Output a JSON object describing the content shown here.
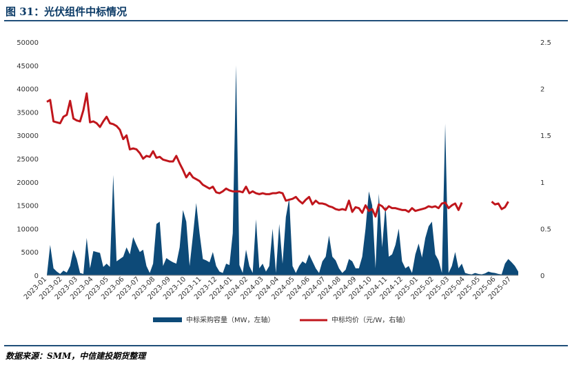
{
  "header": {
    "title": "图 31：光伏组件中标情况"
  },
  "footer": {
    "source": "数据来源：SMM，中信建投期货整理"
  },
  "chart_data": {
    "type": "area+line",
    "y_left": {
      "ticks": [
        "50000",
        "45000",
        "40000",
        "35000",
        "30000",
        "25000",
        "20000",
        "15000",
        "10000",
        "5000",
        "0"
      ],
      "lim": [
        0,
        50000
      ]
    },
    "y_right": {
      "ticks": [
        "2.5",
        "2",
        "1.5",
        "1",
        "0.5",
        "0"
      ],
      "lim": [
        0,
        2.5
      ]
    },
    "x_ticks": [
      "2023-01",
      "2023-02",
      "2023-03",
      "2023-04",
      "2023-05",
      "2023-06",
      "2023-07",
      "2023-08",
      "2023-09",
      "2023-10",
      "2023-11",
      "2023-12",
      "2024-01",
      "2024-02",
      "2024-03",
      "2024-04",
      "2024-05",
      "2024-06",
      "2024-07",
      "2024-08",
      "2024-09",
      "2024-10",
      "2024-11",
      "2024-12",
      "2025-01",
      "2025-02",
      "2025-03",
      "2025-04",
      "2025-05",
      "2025-06",
      "2025-07"
    ],
    "series": [
      {
        "name": "中标采购容量（MW，左轴）",
        "axis": "left",
        "type": "area",
        "color": "#0d4a78",
        "values": [
          0,
          6500,
          1500,
          800,
          300,
          1000,
          600,
          2000,
          5500,
          3500,
          500,
          300,
          8000,
          1500,
          5200,
          5000,
          4800,
          1800,
          2500,
          1800,
          21500,
          3000,
          3500,
          4000,
          6000,
          4500,
          8200,
          6500,
          5000,
          5500,
          2000,
          500,
          2500,
          11000,
          11500,
          2000,
          3700,
          3200,
          2800,
          2500,
          6000,
          14000,
          11500,
          2000,
          8500,
          15500,
          9000,
          3500,
          3200,
          2800,
          5000,
          2000,
          800,
          500,
          2500,
          2200,
          9000,
          45000,
          2200,
          500,
          5500,
          2000,
          500,
          12000,
          1500,
          2500,
          800,
          2000,
          10000,
          500,
          11000,
          2500,
          12500,
          16500,
          2000,
          500,
          2000,
          3000,
          2500,
          4500,
          3000,
          1500,
          500,
          3000,
          4000,
          8500,
          4000,
          3200,
          1500,
          500,
          1200,
          3500,
          3000,
          1500,
          1500,
          4000,
          10000,
          18000,
          15000,
          1500,
          17500,
          6000,
          15000,
          4000,
          4500,
          6500,
          10000,
          3000,
          1500,
          2000,
          500,
          4500,
          6800,
          3800,
          8000,
          10500,
          11500,
          4500,
          3200,
          500,
          32500,
          500,
          2000,
          5000,
          1500,
          2500,
          500,
          300,
          200,
          500,
          300,
          200,
          400,
          800,
          600,
          500,
          300,
          200,
          2500,
          3500,
          2800,
          2000,
          800
        ]
      },
      {
        "name": "中标均价（元/W，右轴）",
        "axis": "right",
        "type": "line",
        "color": "#c0161c",
        "values": [
          1.86,
          1.88,
          1.65,
          1.64,
          1.63,
          1.7,
          1.72,
          1.87,
          1.68,
          1.66,
          1.65,
          1.77,
          1.95,
          1.64,
          1.65,
          1.63,
          1.59,
          1.65,
          1.7,
          1.63,
          1.62,
          1.6,
          1.56,
          1.46,
          1.5,
          1.35,
          1.36,
          1.35,
          1.31,
          1.25,
          1.28,
          1.27,
          1.33,
          1.26,
          1.27,
          1.24,
          1.23,
          1.22,
          1.22,
          1.28,
          1.2,
          1.13,
          1.05,
          1.1,
          1.05,
          1.03,
          1.01,
          0.97,
          0.95,
          0.93,
          0.95,
          0.89,
          0.88,
          0.9,
          0.93,
          0.91,
          0.9,
          0.9,
          0.9,
          0.89,
          0.95,
          0.88,
          0.9,
          0.88,
          0.87,
          0.88,
          0.87,
          0.87,
          0.88,
          0.88,
          0.89,
          0.88,
          0.8,
          0.81,
          0.82,
          0.84,
          0.8,
          0.77,
          0.81,
          0.84,
          0.76,
          0.8,
          0.77,
          0.77,
          0.76,
          0.74,
          0.73,
          0.71,
          0.7,
          0.71,
          0.7,
          0.8,
          0.68,
          0.73,
          0.72,
          0.67,
          0.75,
          0.69,
          0.71,
          0.63,
          0.76,
          0.74,
          0.7,
          0.74,
          0.72,
          0.72,
          0.71,
          0.7,
          0.7,
          0.68,
          0.72,
          0.69,
          0.7,
          0.71,
          0.72,
          0.74,
          0.73,
          0.74,
          0.72,
          0.77,
          0.78,
          0.72,
          0.75,
          0.77,
          0.7,
          0.78,
          null,
          null,
          null,
          null,
          null,
          null,
          null,
          null,
          0.79,
          0.76,
          0.77,
          0.71,
          0.73,
          0.79
        ]
      }
    ]
  }
}
